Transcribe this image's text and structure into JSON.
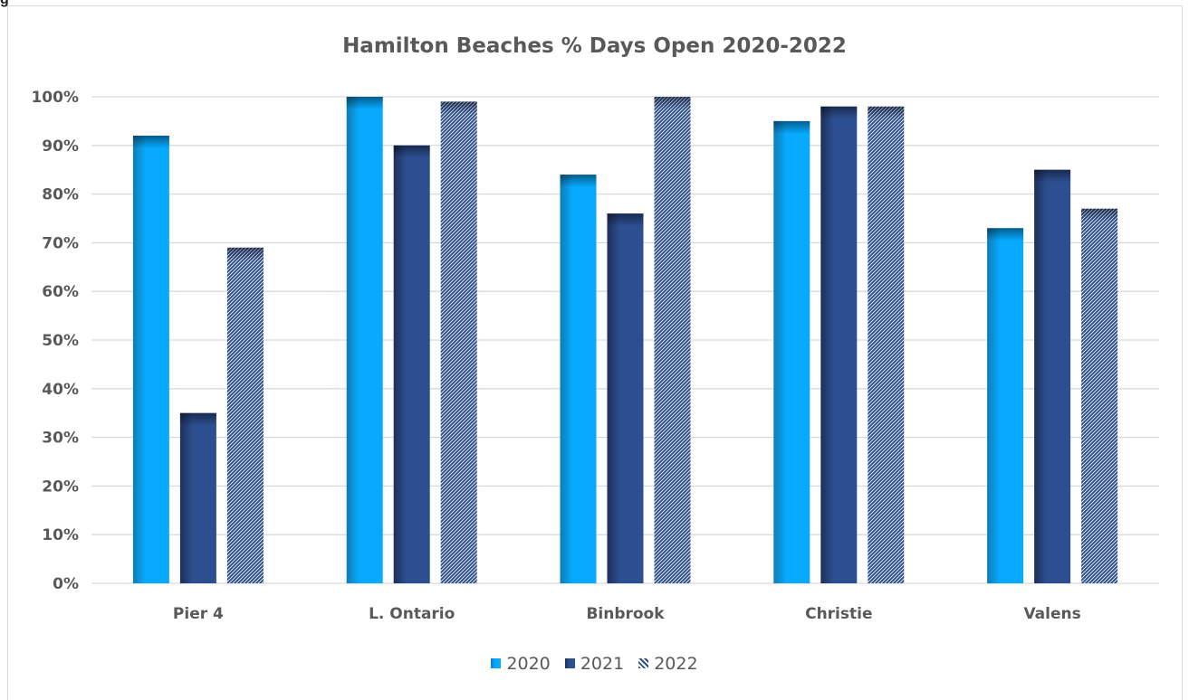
{
  "page": {
    "top_fragment": "g"
  },
  "chart_data": {
    "type": "bar",
    "title": "Hamilton Beaches % Days Open 2020-2022",
    "categories": [
      "Pier 4",
      "L. Ontario",
      "Binbrook",
      "Christie",
      "Valens"
    ],
    "series": [
      {
        "name": "2020",
        "values": [
          92,
          100,
          84,
          95,
          73
        ],
        "color": "#07aaff",
        "shade": "#0f7cb4",
        "pattern": "solid"
      },
      {
        "name": "2021",
        "values": [
          35,
          90,
          76,
          98,
          85
        ],
        "color": "#2c4f91",
        "shade": "#1d2f5a",
        "pattern": "solid"
      },
      {
        "name": "2022",
        "values": [
          69,
          99,
          100,
          98,
          77
        ],
        "color": "#2c4f91",
        "shade": "#1d2f5a",
        "pattern": "checker"
      }
    ],
    "yticks": [
      "0%",
      "10%",
      "20%",
      "30%",
      "40%",
      "50%",
      "60%",
      "70%",
      "80%",
      "90%",
      "100%"
    ],
    "ylim": [
      0,
      100
    ],
    "grid": true,
    "legend_position": "bottom",
    "xlabel": "",
    "ylabel": ""
  }
}
